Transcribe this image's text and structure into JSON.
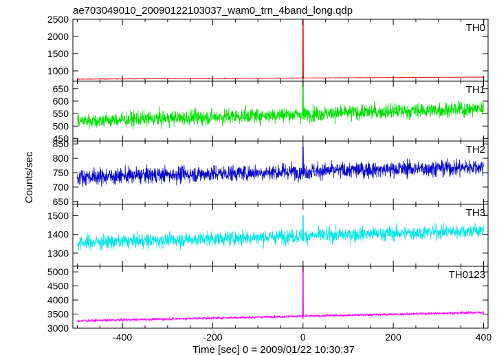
{
  "chart_data": {
    "type": "line",
    "title": "ae703049010_20090122103037_wam0_trn_4band_long.qdp",
    "xlabel": "Time [sec] 0 = 2009/01/22 10:30:37",
    "ylabel": "Counts/sec",
    "xlim": [
      -510,
      410
    ],
    "x_ticks": [
      -400,
      -200,
      0,
      200,
      400
    ],
    "trigger_time": 0,
    "panels": [
      {
        "name": "TH0",
        "color": "#ff0000",
        "ylim": [
          700,
          2500
        ],
        "y_ticks": [
          1000,
          1500,
          2000,
          2500
        ],
        "baseline_start": 760,
        "baseline_end": 820,
        "noise": 8,
        "spike_peak": 2500,
        "series": [
          {
            "x": [
              -500,
              -400,
              -300,
              -200,
              -100,
              0,
              100,
              200,
              300,
              400
            ],
            "y": [
              760,
              765,
              770,
              775,
              780,
              2500,
              790,
              800,
              810,
              820
            ]
          }
        ]
      },
      {
        "name": "TH1",
        "color": "#00e000",
        "ylim": [
          440,
          680
        ],
        "y_ticks": [
          450,
          500,
          550,
          600,
          650
        ],
        "baseline_start": 520,
        "baseline_end": 570,
        "noise": 30,
        "spike_peak": 680,
        "series": [
          {
            "x": [
              -500,
              -400,
              -300,
              -200,
              -100,
              0,
              100,
              200,
              300,
              400
            ],
            "y": [
              520,
              522,
              524,
              526,
              528,
              680,
              540,
              548,
              560,
              570
            ]
          }
        ]
      },
      {
        "name": "TH2",
        "color": "#0000cc",
        "ylim": [
          640,
          860
        ],
        "y_ticks": [
          650,
          700,
          750,
          800,
          850
        ],
        "baseline_start": 735,
        "baseline_end": 770,
        "noise": 28,
        "spike_peak": 840,
        "series": [
          {
            "x": [
              -500,
              -400,
              -300,
              -200,
              -100,
              0,
              100,
              200,
              300,
              400
            ],
            "y": [
              735,
              737,
              740,
              742,
              744,
              840,
              750,
              756,
              763,
              770
            ]
          }
        ]
      },
      {
        "name": "TH3",
        "color": "#00e5e5",
        "ylim": [
          1230,
          1560
        ],
        "y_ticks": [
          1300,
          1400,
          1500
        ],
        "baseline_start": 1355,
        "baseline_end": 1420,
        "noise": 38,
        "spike_peak": 1500,
        "series": [
          {
            "x": [
              -500,
              -400,
              -300,
              -200,
              -100,
              0,
              100,
              200,
              300,
              400
            ],
            "y": [
              1355,
              1357,
              1360,
              1362,
              1365,
              1500,
              1375,
              1390,
              1405,
              1420
            ]
          }
        ]
      },
      {
        "name": "TH0123",
        "color": "#ff00ff",
        "ylim": [
          3000,
          5200
        ],
        "y_ticks": [
          3000,
          3500,
          4000,
          4500,
          5000
        ],
        "baseline_start": 3260,
        "baseline_end": 3560,
        "noise": 45,
        "spike_peak": 5200,
        "series": [
          {
            "x": [
              -500,
              -400,
              -300,
              -200,
              -100,
              0,
              100,
              200,
              300,
              400
            ],
            "y": [
              3260,
              3280,
              3300,
              3320,
              3340,
              5200,
              3380,
              3420,
              3480,
              3560
            ]
          }
        ]
      }
    ]
  }
}
